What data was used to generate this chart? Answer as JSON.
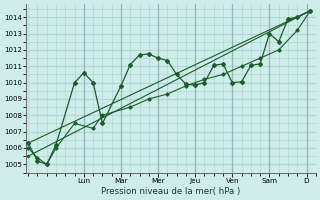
{
  "xlabel": "Pression niveau de la mer( hPa )",
  "bg_color": "#ceecea",
  "grid_color": "#b0d8d4",
  "line_color": "#1a5c2a",
  "ylim": [
    1004.5,
    1014.8
  ],
  "yticks": [
    1005,
    1006,
    1007,
    1008,
    1009,
    1010,
    1011,
    1012,
    1013,
    1014
  ],
  "day_labels": [
    "Lun",
    "Mar",
    "Mer",
    "Jeu",
    "Ven",
    "Sam",
    "D"
  ],
  "day_positions": [
    3.0,
    5.0,
    7.0,
    9.0,
    11.0,
    13.0,
    15.0
  ],
  "xlim": [
    -0.1,
    15.5
  ],
  "series1_x": [
    0.0,
    0.5,
    1.0,
    1.5,
    2.5,
    3.0,
    3.5,
    4.0,
    5.0,
    5.5,
    6.0,
    6.5,
    7.0,
    7.5,
    8.0,
    8.5,
    9.0,
    9.5,
    10.0,
    10.5,
    11.0,
    11.5,
    12.0,
    12.5,
    13.0,
    13.5,
    14.0,
    14.5,
    15.2
  ],
  "series1_y": [
    1006.3,
    1005.2,
    1005.0,
    1006.2,
    1010.0,
    1010.6,
    1010.0,
    1007.5,
    1009.8,
    1011.1,
    1011.7,
    1011.75,
    1011.5,
    1011.35,
    1010.5,
    1009.9,
    1009.85,
    1010.0,
    1011.05,
    1011.15,
    1010.0,
    1010.05,
    1011.05,
    1011.15,
    1013.0,
    1012.5,
    1013.9,
    1014.0,
    1014.4
  ],
  "series2_x": [
    0.0,
    0.5,
    1.0,
    1.5,
    2.5,
    3.5,
    4.0,
    5.5,
    6.5,
    7.5,
    8.5,
    9.5,
    10.5,
    11.5,
    12.5,
    13.5,
    14.5,
    15.2
  ],
  "series2_y": [
    1006.0,
    1005.4,
    1005.0,
    1006.0,
    1007.5,
    1007.2,
    1008.0,
    1008.5,
    1009.0,
    1009.3,
    1009.8,
    1010.2,
    1010.5,
    1011.0,
    1011.5,
    1012.0,
    1013.2,
    1014.4
  ],
  "series3_x": [
    0.0,
    15.2
  ],
  "series3_y": [
    1005.5,
    1014.4
  ],
  "series4_x": [
    0.0,
    15.2
  ],
  "series4_y": [
    1006.3,
    1014.4
  ]
}
